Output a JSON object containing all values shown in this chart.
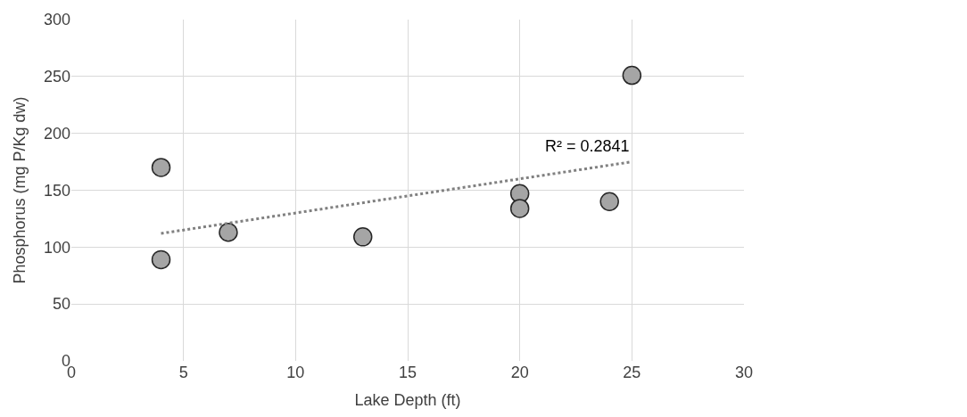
{
  "chart_data": {
    "type": "scatter",
    "xlabel": "Lake Depth (ft)",
    "ylabel": "Phosphorus (mg P/Kg dw)",
    "series": [
      {
        "color": "#a5a5a5",
        "x": [
          4,
          4,
          7,
          13,
          20,
          20,
          24,
          25
        ],
        "values": [
          170,
          89,
          113,
          109,
          147,
          134,
          140,
          251
        ],
        "marker": "circle"
      },
      {
        "type": "line",
        "color": "#808080",
        "x": [
          4,
          25
        ],
        "values": [
          112,
          175
        ],
        "line_style": "dotted",
        "marker": "none"
      }
    ],
    "annotations": [
      "R² = 0.2841"
    ],
    "xlim": [
      0,
      30
    ],
    "xticks": [
      0,
      5,
      10,
      15,
      20,
      25,
      30
    ],
    "ylim": [
      0,
      300
    ],
    "yticks": [
      0,
      50,
      100,
      150,
      200,
      250,
      300
    ],
    "grid": true
  }
}
